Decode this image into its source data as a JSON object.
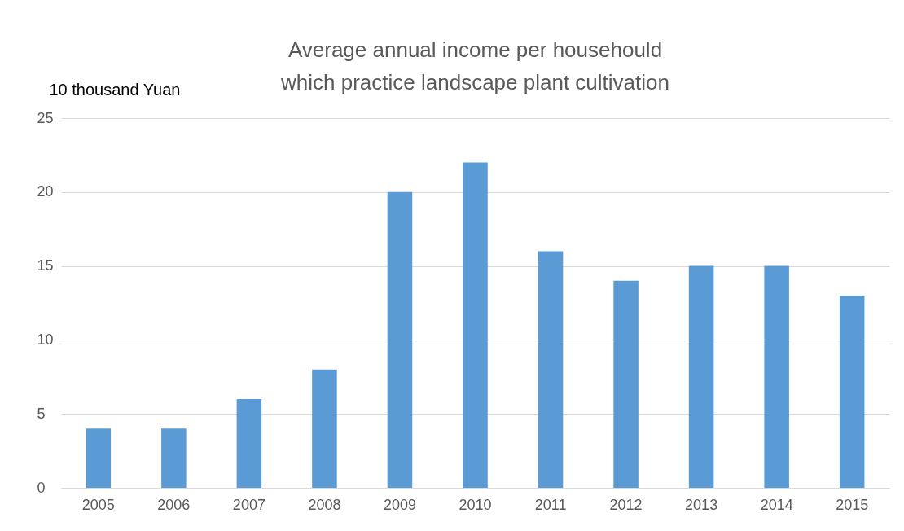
{
  "chart_data": {
    "type": "bar",
    "title": "Average annual income per househould\nwhich practice landscape plant cultivation",
    "ylabel": "10 thousand Yuan",
    "categories": [
      "2005",
      "2006",
      "2007",
      "2008",
      "2009",
      "2010",
      "2011",
      "2012",
      "2013",
      "2014",
      "2015"
    ],
    "values": [
      4,
      4,
      6,
      8,
      20,
      22,
      16,
      14,
      15,
      15,
      13
    ],
    "color": "#5b9bd5",
    "ylim": [
      0,
      25
    ],
    "yticks": [
      0,
      5,
      10,
      15,
      20,
      25
    ],
    "grid": "y"
  }
}
